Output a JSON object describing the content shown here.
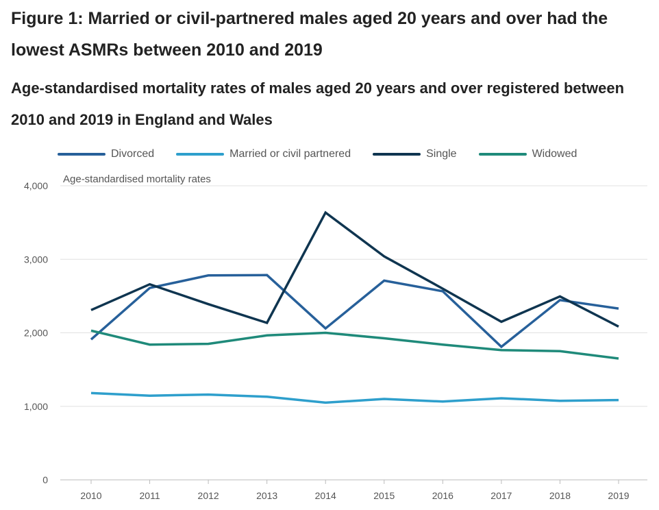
{
  "title": "Figure 1: Married or civil-partnered males aged 20 years and over had the lowest ASMRs between 2010 and 2019",
  "chart_data": {
    "type": "line",
    "title": "Figure 1: Married or civil-partnered males aged 20 years and over had the lowest ASMRs between 2010 and 2019",
    "subtitle": "Age-standardised mortality rates of males aged 20 years and over registered between 2010 and 2019 in England and Wales",
    "ylabel": "Age-standardised mortality rates",
    "xlabel": "",
    "x": [
      "2010",
      "2011",
      "2012",
      "2013",
      "2014",
      "2015",
      "2016",
      "2017",
      "2018",
      "2019"
    ],
    "ylim": [
      0,
      4000
    ],
    "yticks": [
      "0",
      "1,000",
      "2,000",
      "3,000",
      "4,000"
    ],
    "ytick_values": [
      0,
      1000,
      2000,
      3000,
      4000
    ],
    "grid": true,
    "legend_position": "top",
    "series": [
      {
        "name": "Divorced",
        "color": "#27609a",
        "values": [
          1910,
          2610,
          2780,
          2785,
          2060,
          2710,
          2565,
          1810,
          2445,
          2330
        ]
      },
      {
        "name": "Married or civil partnered",
        "color": "#2e9fcc",
        "values": [
          1180,
          1145,
          1160,
          1130,
          1050,
          1100,
          1065,
          1110,
          1075,
          1085
        ]
      },
      {
        "name": "Single",
        "color": "#0f3550",
        "values": [
          2310,
          2660,
          2390,
          2135,
          3635,
          3040,
          2600,
          2150,
          2495,
          2085
        ]
      },
      {
        "name": "Widowed",
        "color": "#1f8a7a",
        "values": [
          2030,
          1840,
          1850,
          1965,
          2000,
          1925,
          1840,
          1765,
          1750,
          1650
        ]
      }
    ]
  }
}
